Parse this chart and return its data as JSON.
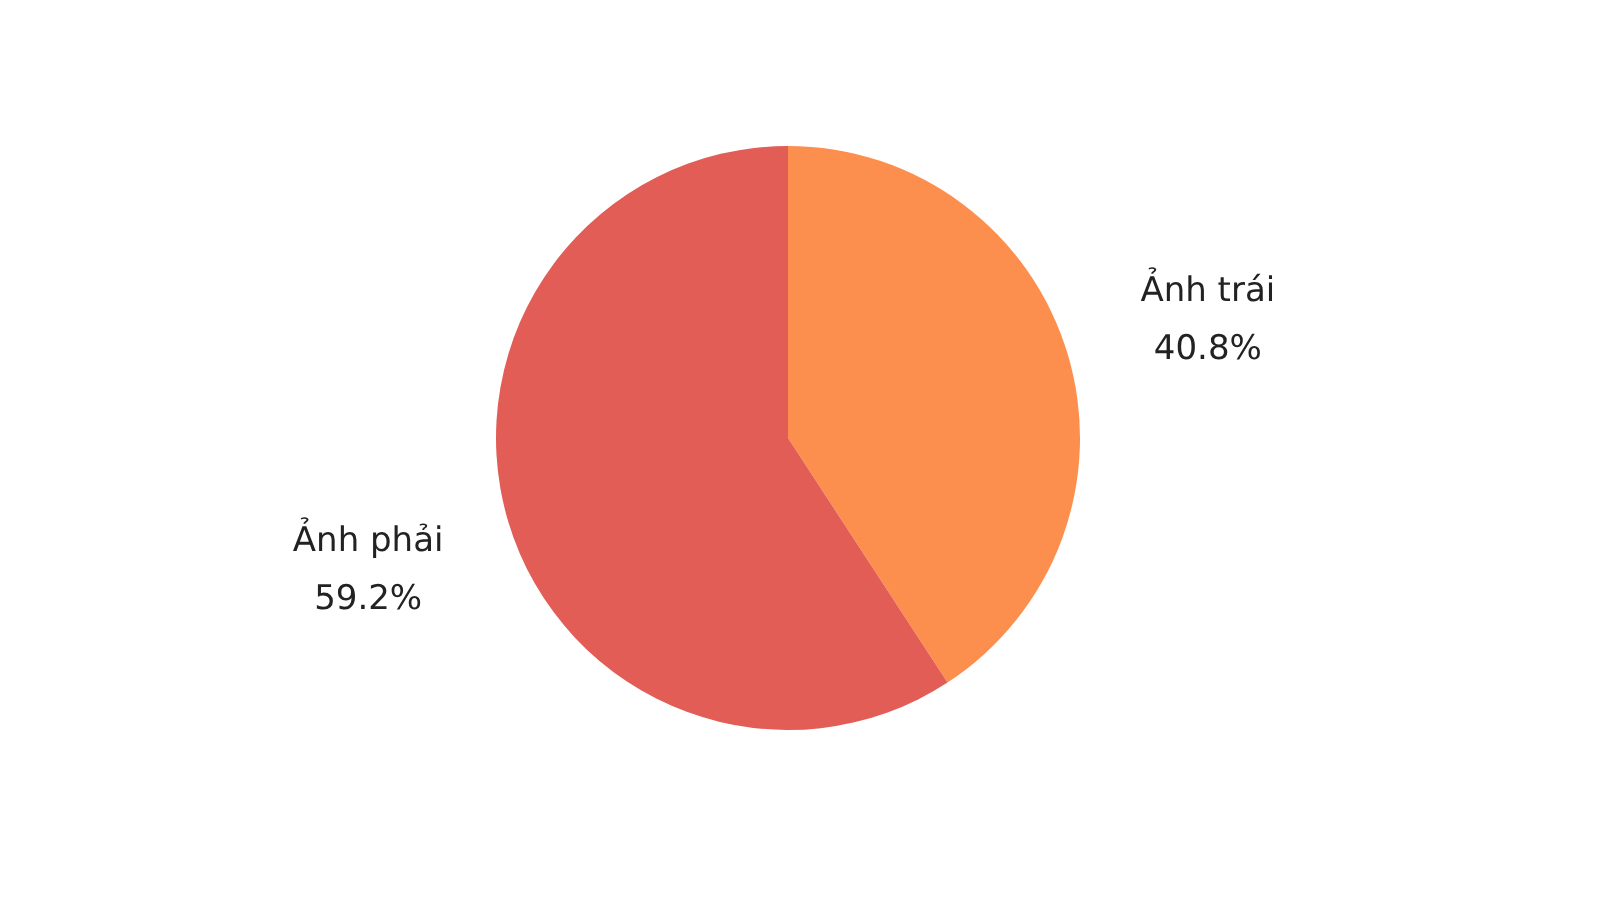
{
  "chart_data": {
    "type": "pie",
    "categories": [
      "Ảnh trái",
      "Ảnh phải"
    ],
    "values": [
      40.8,
      59.2
    ],
    "colors": [
      "#fd8f4e",
      "#e25d56"
    ],
    "value_labels": [
      "40.8%",
      "59.2%"
    ]
  }
}
